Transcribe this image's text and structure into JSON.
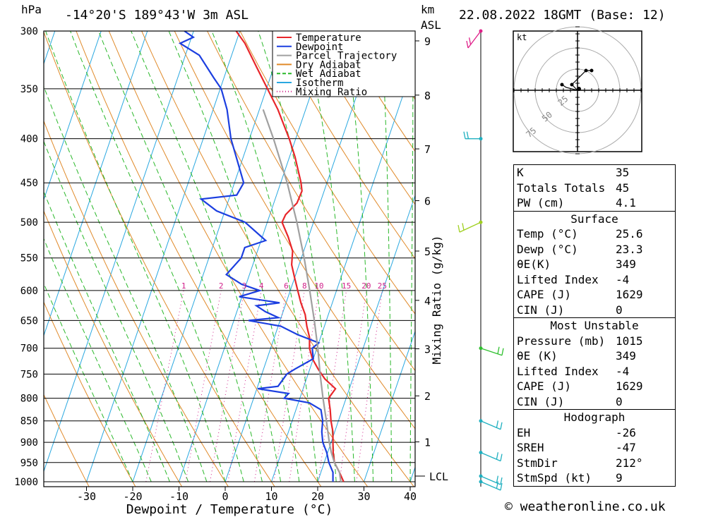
{
  "header": {
    "pressure_unit": "hPa",
    "location": "-14°20'S 189°43'W 3m ASL",
    "height_unit": "km",
    "height_unit_sub": "ASL",
    "datetime": "22.08.2022 18GMT (Base: 12)"
  },
  "footer": {
    "copyright": "© weatheronline.co.uk"
  },
  "chart_data": {
    "type": "line",
    "subtype": "skew-T log-P",
    "xlabel": "Dewpoint / Temperature (°C)",
    "ylabel": "hPa",
    "xlim": [
      -40,
      40
    ],
    "ylim": [
      1000,
      300
    ],
    "pressure_ticks": [
      300,
      350,
      400,
      450,
      500,
      550,
      600,
      650,
      700,
      750,
      800,
      850,
      900,
      950,
      1000
    ],
    "temperature_ticks": [
      -30,
      -20,
      -10,
      0,
      10,
      20,
      30,
      40
    ],
    "height_km_ticks": [
      {
        "km": "1",
        "p": 899
      },
      {
        "km": "2",
        "p": 795
      },
      {
        "km": "3",
        "p": 701
      },
      {
        "km": "4",
        "p": 616
      },
      {
        "km": "5",
        "p": 540
      },
      {
        "km": "6",
        "p": 472
      },
      {
        "km": "7",
        "p": 411
      },
      {
        "km": "8",
        "p": 356
      },
      {
        "km": "9",
        "p": 308
      }
    ],
    "lcl": {
      "label": "LCL",
      "p": 985
    },
    "mixing_ratio": {
      "axis_label": "Mixing Ratio (g/kg)",
      "labels": [
        "1",
        "2",
        "3",
        "4",
        "6",
        "8",
        "10",
        "15",
        "20",
        "25"
      ]
    },
    "legend": {
      "position": "top-center",
      "items": [
        {
          "name": "Temperature",
          "color": "#e8262a"
        },
        {
          "name": "Dewpoint",
          "color": "#1c3fe0"
        },
        {
          "name": "Parcel Trajectory",
          "color": "#a0a0a0"
        },
        {
          "name": "Dry Adiabat",
          "color": "#e08a2a"
        },
        {
          "name": "Wet Adiabat",
          "color": "#2ab82a"
        },
        {
          "name": "Isotherm",
          "color": "#2aa8e0"
        },
        {
          "name": "Mixing Ratio",
          "color": "#d0208a"
        }
      ]
    },
    "series": [
      {
        "name": "Temperature",
        "color": "#e8262a",
        "points": [
          [
            1000,
            25.6
          ],
          [
            975,
            24.0
          ],
          [
            950,
            22.2
          ],
          [
            925,
            21.2
          ],
          [
            900,
            20.4
          ],
          [
            875,
            19.6
          ],
          [
            850,
            18.4
          ],
          [
            825,
            17.4
          ],
          [
            800,
            16.2
          ],
          [
            780,
            17.0
          ],
          [
            760,
            14.0
          ],
          [
            740,
            11.8
          ],
          [
            720,
            9.8
          ],
          [
            700,
            8.4
          ],
          [
            680,
            7.6
          ],
          [
            660,
            6.2
          ],
          [
            640,
            5.0
          ],
          [
            620,
            3.2
          ],
          [
            600,
            1.6
          ],
          [
            580,
            0.0
          ],
          [
            560,
            -1.6
          ],
          [
            540,
            -2.4
          ],
          [
            520,
            -4.4
          ],
          [
            500,
            -6.8
          ],
          [
            490,
            -6.6
          ],
          [
            475,
            -5.0
          ],
          [
            460,
            -4.8
          ],
          [
            450,
            -5.6
          ],
          [
            420,
            -8.8
          ],
          [
            400,
            -11.4
          ],
          [
            370,
            -16.0
          ],
          [
            350,
            -19.8
          ],
          [
            330,
            -23.8
          ],
          [
            310,
            -28.0
          ],
          [
            300,
            -30.8
          ]
        ]
      },
      {
        "name": "Dewpoint",
        "color": "#1c3fe0",
        "points": [
          [
            1000,
            23.3
          ],
          [
            975,
            22.6
          ],
          [
            950,
            21.0
          ],
          [
            925,
            19.8
          ],
          [
            900,
            18.2
          ],
          [
            875,
            17.2
          ],
          [
            850,
            16.6
          ],
          [
            825,
            15.4
          ],
          [
            810,
            12.4
          ],
          [
            800,
            6.6
          ],
          [
            790,
            7.2
          ],
          [
            780,
            0.2
          ],
          [
            775,
            4.4
          ],
          [
            760,
            5.0
          ],
          [
            750,
            5.4
          ],
          [
            740,
            6.8
          ],
          [
            720,
            10.0
          ],
          [
            700,
            9.0
          ],
          [
            690,
            10.0
          ],
          [
            675,
            4.8
          ],
          [
            660,
            0.6
          ],
          [
            650,
            -6.8
          ],
          [
            645,
            -0.6
          ],
          [
            635,
            -3.8
          ],
          [
            625,
            -6.2
          ],
          [
            620,
            -1.4
          ],
          [
            610,
            -10.6
          ],
          [
            600,
            -6.6
          ],
          [
            590,
            -11.0
          ],
          [
            575,
            -15.0
          ],
          [
            550,
            -13.0
          ],
          [
            535,
            -13.0
          ],
          [
            525,
            -9.0
          ],
          [
            500,
            -14.8
          ],
          [
            485,
            -21.8
          ],
          [
            470,
            -26.0
          ],
          [
            465,
            -18.6
          ],
          [
            450,
            -18.0
          ],
          [
            400,
            -24.0
          ],
          [
            370,
            -27.0
          ],
          [
            350,
            -29.8
          ],
          [
            340,
            -32.2
          ],
          [
            320,
            -37.0
          ],
          [
            310,
            -42.0
          ],
          [
            305,
            -39.6
          ],
          [
            300,
            -42.0
          ]
        ]
      },
      {
        "name": "Parcel Trajectory",
        "color": "#a0a0a0",
        "points": [
          [
            1000,
            25.0
          ],
          [
            975,
            24.0
          ],
          [
            950,
            22.2
          ],
          [
            925,
            20.8
          ],
          [
            900,
            19.6
          ],
          [
            850,
            17.4
          ],
          [
            800,
            15.0
          ],
          [
            750,
            12.6
          ],
          [
            700,
            10.2
          ],
          [
            650,
            7.4
          ],
          [
            600,
            4.2
          ],
          [
            550,
            0.6
          ],
          [
            500,
            -3.6
          ],
          [
            450,
            -8.6
          ],
          [
            400,
            -14.8
          ],
          [
            370,
            -19.2
          ]
        ]
      }
    ],
    "wind_barbs": [
      {
        "p": 300,
        "color": "#e0208a"
      },
      {
        "p": 400,
        "color": "#20b0c0"
      },
      {
        "p": 500,
        "color": "#a0d020"
      },
      {
        "p": 700,
        "color": "#30c030"
      },
      {
        "p": 850,
        "color": "#20b0c0"
      },
      {
        "p": 925,
        "color": "#20b0c0"
      },
      {
        "p": 985,
        "color": "#20b0c0"
      },
      {
        "p": 1000,
        "color": "#20b0c0"
      }
    ],
    "hodograph": {
      "unit": "kt",
      "ring_labels": [
        "25",
        "50",
        "75"
      ],
      "points": [
        [
          0,
          0
        ],
        [
          -2,
          2
        ],
        [
          3,
          7
        ],
        [
          5,
          7
        ]
      ]
    }
  },
  "indices": {
    "top": [
      {
        "k": "K",
        "v": "35"
      },
      {
        "k": "Totals Totals",
        "v": "45"
      },
      {
        "k": "PW (cm)",
        "v": "4.1"
      }
    ],
    "surface_title": "Surface",
    "surface": [
      {
        "k": "Temp (°C)",
        "v": "25.6"
      },
      {
        "k": "Dewp (°C)",
        "v": "23.3"
      },
      {
        "k": "θE(K)",
        "v": "349"
      },
      {
        "k": "Lifted Index",
        "v": "-4"
      },
      {
        "k": "CAPE (J)",
        "v": "1629"
      },
      {
        "k": "CIN (J)",
        "v": "0"
      }
    ],
    "mu_title": "Most Unstable",
    "mu": [
      {
        "k": "Pressure (mb)",
        "v": "1015"
      },
      {
        "k": "θE (K)",
        "v": "349"
      },
      {
        "k": "Lifted Index",
        "v": "-4"
      },
      {
        "k": "CAPE (J)",
        "v": "1629"
      },
      {
        "k": "CIN (J)",
        "v": "0"
      }
    ],
    "hodo_title": "Hodograph",
    "hodo": [
      {
        "k": "EH",
        "v": "-26"
      },
      {
        "k": "SREH",
        "v": "-47"
      },
      {
        "k": "StmDir",
        "v": "212°"
      },
      {
        "k": "StmSpd (kt)",
        "v": "9"
      }
    ]
  }
}
